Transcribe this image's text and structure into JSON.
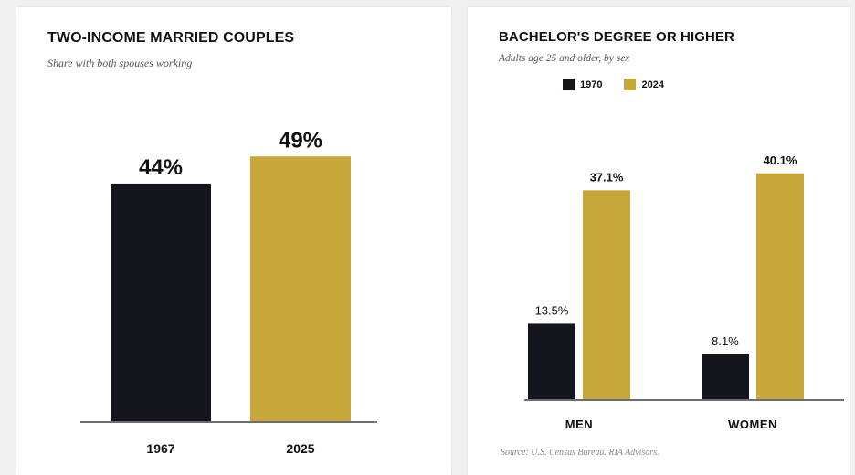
{
  "colors": {
    "series_1": "#14151d",
    "series_2": "#c8a73a",
    "axis": "#6e6e6e",
    "text": "#111111"
  },
  "left_panel": {
    "title": "TWO-INCOME MARRIED COUPLES",
    "subtitle": "Share with both spouses working",
    "chart_data": {
      "type": "bar",
      "categories": [
        "1967",
        "2025"
      ],
      "values": [
        44,
        49
      ],
      "value_labels": [
        "44%",
        "49%"
      ],
      "bar_colors": [
        "#14151d",
        "#c8a73a"
      ],
      "ylim": [
        0,
        60
      ],
      "grid": false,
      "legend": null
    }
  },
  "right_panel": {
    "title": "BACHELOR'S DEGREE OR HIGHER",
    "subtitle": "Adults age 25 and older, by sex",
    "legend": [
      {
        "label": "1970",
        "color": "#14151d"
      },
      {
        "label": "2024",
        "color": "#c8a73a"
      }
    ],
    "source": "Source: U.S. Census Bureau. RIA Advisors.",
    "chart_data": {
      "type": "bar",
      "categories": [
        "MEN",
        "WOMEN"
      ],
      "series": [
        {
          "name": "1970",
          "values": [
            13.5,
            8.1
          ],
          "labels": [
            "13.5%",
            "8.1%"
          ],
          "color": "#14151d"
        },
        {
          "name": "2024",
          "values": [
            37.1,
            40.1
          ],
          "labels": [
            "37.1%",
            "40.1%"
          ],
          "color": "#c8a73a"
        }
      ],
      "ylim": [
        0,
        42
      ],
      "grid": false,
      "legend": "top-left"
    }
  }
}
